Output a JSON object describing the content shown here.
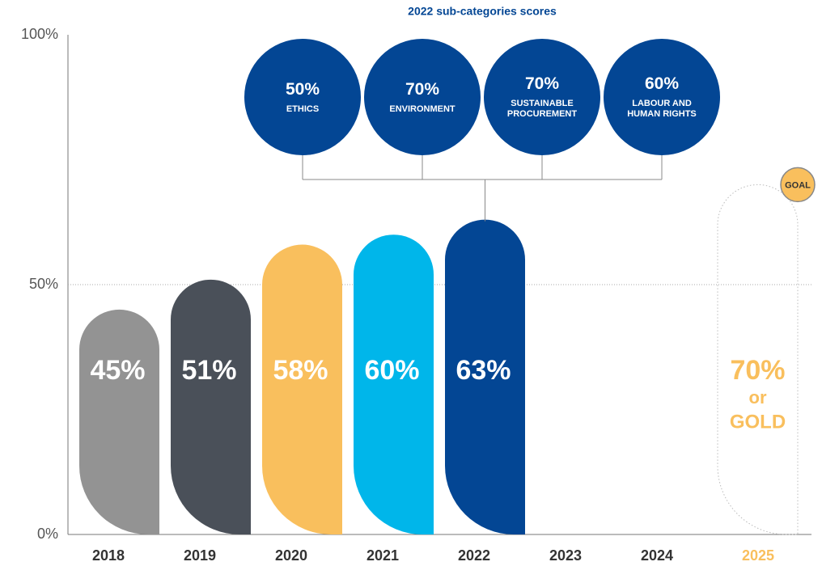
{
  "chart_data": {
    "type": "bar",
    "categories": [
      "2018",
      "2019",
      "2020",
      "2021",
      "2022",
      "2023",
      "2024",
      "2025"
    ],
    "values": [
      45,
      51,
      58,
      60,
      63,
      null,
      null,
      null
    ],
    "value_labels": [
      "45%",
      "51%",
      "58%",
      "60%",
      "63%",
      null,
      null,
      null
    ],
    "colors": [
      "#939393",
      "#4a5059",
      "#f9bf5d",
      "#00b6ea",
      "#034694"
    ],
    "ylim": [
      0,
      100
    ],
    "yticks": [
      {
        "value": 0,
        "label": "0%"
      },
      {
        "value": 50,
        "label": "50%"
      },
      {
        "value": 100,
        "label": "100%"
      }
    ],
    "grid": true,
    "goal": {
      "badge": "GOAL",
      "value": 70,
      "value_label": "70%",
      "joiner": "or",
      "alternative": "GOLD",
      "color": "#f9bf5d"
    },
    "sub_categories": {
      "title": "2022 sub-categories scores",
      "names": [
        "ETHICS",
        "ENVIRONMENT",
        "SUSTAINABLE PROCUREMENT",
        "LABOUR AND HUMAN RIGHTS"
      ],
      "values": [
        50,
        70,
        70,
        60
      ],
      "value_labels": [
        "50%",
        "70%",
        "70%",
        "60%"
      ],
      "color": "#034694"
    }
  }
}
